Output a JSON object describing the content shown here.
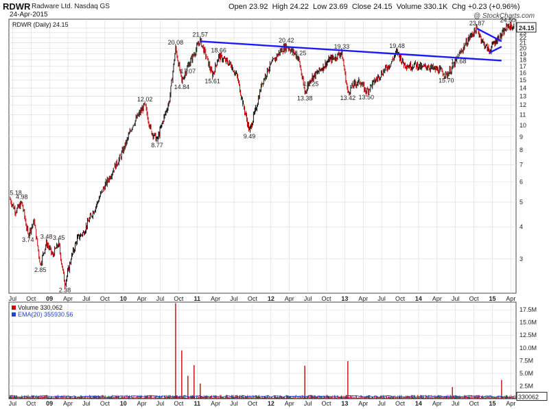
{
  "header": {
    "symbol": "RDWR",
    "company": "Radware Ltd.  Nasdaq GS",
    "date": "24-Apr-2015",
    "open_label": "Open",
    "open": "23.92",
    "high_label": "High",
    "high": "24.22",
    "low_label": "Low",
    "low": "23.69",
    "close_label": "Close",
    "close": "24.15",
    "volume_label": "Volume",
    "volume": "330.1K",
    "chg_label": "Chg",
    "chg": "+0.23 (+0.96%)",
    "watermark": "@ StockCharts.com"
  },
  "price_legend": "RDWR (Daily) 24.15",
  "last_price_tag": "24.15",
  "volume_legend": {
    "volume": "Volume 330,062",
    "ema": "EMA(20) 355930.56"
  },
  "volume_last_tag": "330062",
  "colors": {
    "up": "#111111",
    "down": "#cc0000",
    "trendline": "#1a1aff",
    "grid": "#d8d8d8",
    "volume_fill": "#e8a0a0",
    "ema": "#2244cc"
  },
  "chart_data": [
    {
      "type": "line",
      "scale": "log",
      "ylim": [
        2.2,
        26
      ],
      "yticks": [
        "24",
        "23",
        "22",
        "21",
        "20",
        "19",
        "18",
        "17",
        "16",
        "15",
        "14",
        "13",
        "12",
        "11",
        "10",
        "9",
        "8",
        "7",
        "6",
        "5",
        "4",
        "3"
      ],
      "x_labels": [
        "Jul",
        "Oct",
        "09",
        "Apr",
        "Jul",
        "Oct",
        "10",
        "Apr",
        "Jul",
        "Oct",
        "11",
        "Apr",
        "Jul",
        "Oct",
        "12",
        "Apr",
        "Jul",
        "Oct",
        "13",
        "Apr",
        "Jul",
        "Oct",
        "14",
        "Apr",
        "Jul",
        "Oct",
        "15",
        "Apr"
      ],
      "x_label_year_flags": [
        0,
        0,
        1,
        0,
        0,
        0,
        1,
        0,
        0,
        0,
        1,
        0,
        0,
        0,
        1,
        0,
        0,
        0,
        1,
        0,
        0,
        0,
        1,
        0,
        0,
        0,
        1,
        0
      ],
      "x_range_months": [
        "2008-06",
        "2015-04"
      ],
      "series": [
        {
          "values_by_month": [
            [
              "2008-06",
              5.18
            ],
            [
              "2008-07",
              4.6
            ],
            [
              "2008-08",
              4.98
            ],
            [
              "2008-09",
              3.74
            ],
            [
              "2008-10",
              4.2
            ],
            [
              "2008-11",
              2.85
            ],
            [
              "2008-12",
              3.48
            ],
            [
              "2009-01",
              3.1
            ],
            [
              "2009-02",
              3.45
            ],
            [
              "2009-03",
              2.38
            ],
            [
              "2009-04",
              3.0
            ],
            [
              "2009-05",
              3.6
            ],
            [
              "2009-06",
              3.8
            ],
            [
              "2009-07",
              4.3
            ],
            [
              "2009-08",
              4.8
            ],
            [
              "2009-09",
              5.5
            ],
            [
              "2009-10",
              6.1
            ],
            [
              "2009-11",
              6.8
            ],
            [
              "2009-12",
              7.5
            ],
            [
              "2010-01",
              8.6
            ],
            [
              "2010-02",
              10.0
            ],
            [
              "2010-03",
              11.0
            ],
            [
              "2010-04",
              12.02
            ],
            [
              "2010-05",
              9.5
            ],
            [
              "2010-06",
              8.77
            ],
            [
              "2010-07",
              10.5
            ],
            [
              "2010-08",
              12.5
            ],
            [
              "2010-09",
              20.08
            ],
            [
              "2010-10",
              14.84
            ],
            [
              "2010-11",
              17.07
            ],
            [
              "2010-12",
              19.0
            ],
            [
              "2011-01",
              21.57
            ],
            [
              "2011-02",
              18.5
            ],
            [
              "2011-03",
              15.61
            ],
            [
              "2011-04",
              18.66
            ],
            [
              "2011-05",
              18.0
            ],
            [
              "2011-06",
              17.2
            ],
            [
              "2011-07",
              15.5
            ],
            [
              "2011-08",
              12.0
            ],
            [
              "2011-09",
              9.49
            ],
            [
              "2011-10",
              11.5
            ],
            [
              "2011-11",
              14.5
            ],
            [
              "2011-12",
              16.5
            ],
            [
              "2012-01",
              18.0
            ],
            [
              "2012-02",
              19.5
            ],
            [
              "2012-03",
              20.42
            ],
            [
              "2012-04",
              19.5
            ],
            [
              "2012-05",
              18.25
            ],
            [
              "2012-06",
              13.38
            ],
            [
              "2012-07",
              15.25
            ],
            [
              "2012-08",
              16.0
            ],
            [
              "2012-09",
              17.0
            ],
            [
              "2012-10",
              18.0
            ],
            [
              "2012-11",
              18.5
            ],
            [
              "2012-12",
              19.33
            ],
            [
              "2013-01",
              13.42
            ],
            [
              "2013-02",
              14.5
            ],
            [
              "2013-03",
              14.8
            ],
            [
              "2013-04",
              13.5
            ],
            [
              "2013-05",
              14.5
            ],
            [
              "2013-06",
              15.5
            ],
            [
              "2013-07",
              16.5
            ],
            [
              "2013-08",
              17.5
            ],
            [
              "2013-09",
              19.48
            ],
            [
              "2013-10",
              17.5
            ],
            [
              "2013-11",
              17.0
            ],
            [
              "2013-12",
              17.3
            ],
            [
              "2014-01",
              16.8
            ],
            [
              "2014-02",
              17.0
            ],
            [
              "2014-03",
              16.6
            ],
            [
              "2014-04",
              16.4
            ],
            [
              "2014-05",
              15.7
            ],
            [
              "2014-06",
              16.8
            ],
            [
              "2014-07",
              18.68
            ],
            [
              "2014-08",
              20.5
            ],
            [
              "2014-09",
              22.5
            ],
            [
              "2014-10",
              23.87
            ],
            [
              "2014-11",
              21.0
            ],
            [
              "2014-12",
              19.5
            ],
            [
              "2015-01",
              21.5
            ],
            [
              "2015-02",
              22.5
            ],
            [
              "2015-03",
              24.5
            ],
            [
              "2015-04",
              24.15
            ]
          ]
        }
      ],
      "annotations": [
        {
          "date": "2008-06",
          "value": 5.18,
          "text": "5.18",
          "pos": "above"
        },
        {
          "date": "2008-08",
          "value": 4.98,
          "text": "4.98",
          "pos": "above"
        },
        {
          "date": "2008-09",
          "value": 3.74,
          "text": "3.74",
          "pos": "below"
        },
        {
          "date": "2008-11",
          "value": 2.85,
          "text": "2.85",
          "pos": "below"
        },
        {
          "date": "2008-12",
          "value": 3.48,
          "text": "3.48",
          "pos": "above"
        },
        {
          "date": "2009-02",
          "value": 3.45,
          "text": "3.45",
          "pos": "above"
        },
        {
          "date": "2009-03",
          "value": 2.38,
          "text": "2.38",
          "pos": "below"
        },
        {
          "date": "2010-04",
          "value": 12.02,
          "text": "12.02",
          "pos": "above"
        },
        {
          "date": "2010-06",
          "value": 8.77,
          "text": "8.77",
          "pos": "below"
        },
        {
          "date": "2010-09",
          "value": 20.08,
          "text": "20.08",
          "pos": "above"
        },
        {
          "date": "2010-10",
          "value": 14.84,
          "text": "14.84",
          "pos": "below"
        },
        {
          "date": "2010-11",
          "value": 17.07,
          "text": "17.07",
          "pos": "below"
        },
        {
          "date": "2011-01",
          "value": 21.57,
          "text": "21.57",
          "pos": "above"
        },
        {
          "date": "2011-03",
          "value": 15.61,
          "text": "15.61",
          "pos": "below"
        },
        {
          "date": "2011-04",
          "value": 18.66,
          "text": "18.66",
          "pos": "above"
        },
        {
          "date": "2011-09",
          "value": 9.49,
          "text": "9.49",
          "pos": "below"
        },
        {
          "date": "2012-03",
          "value": 20.42,
          "text": "20.42",
          "pos": "above"
        },
        {
          "date": "2012-05",
          "value": 18.25,
          "text": "18.25",
          "pos": "above"
        },
        {
          "date": "2012-06",
          "value": 13.38,
          "text": "13.38",
          "pos": "below"
        },
        {
          "date": "2012-07",
          "value": 15.25,
          "text": "15.25",
          "pos": "below"
        },
        {
          "date": "2012-12",
          "value": 19.33,
          "text": "19.33",
          "pos": "above"
        },
        {
          "date": "2013-01",
          "value": 13.42,
          "text": "13.42",
          "pos": "below"
        },
        {
          "date": "2013-04",
          "value": 13.5,
          "text": "13.50",
          "pos": "below"
        },
        {
          "date": "2013-09",
          "value": 19.48,
          "text": "19.48",
          "pos": "above"
        },
        {
          "date": "2014-05",
          "value": 15.7,
          "text": "15.70",
          "pos": "below"
        },
        {
          "date": "2014-07",
          "value": 18.68,
          "text": "18.68",
          "pos": "below"
        },
        {
          "date": "2014-10",
          "value": 23.87,
          "text": "23.87",
          "pos": "above"
        },
        {
          "date": "2015-03",
          "value": 24.5,
          "text": "24.50",
          "pos": "above"
        }
      ],
      "trendlines": [
        {
          "from": [
            "2011-01",
            21.3
          ],
          "to": [
            "2015-02",
            17.9
          ]
        },
        {
          "from": [
            "2014-10",
            23.9
          ],
          "to": [
            "2015-02",
            21.3
          ]
        },
        {
          "from": [
            "2014-12",
            19.2
          ],
          "to": [
            "2015-02",
            20.3
          ]
        }
      ]
    },
    {
      "type": "bar",
      "title": "Volume",
      "ylim": [
        0,
        19000000
      ],
      "yticks": [
        "17.5M",
        "15.0M",
        "12.5M",
        "10.0M",
        "7.5M",
        "5.0M",
        "2.5M"
      ],
      "ytick_values": [
        17500000,
        15000000,
        12500000,
        10000000,
        7500000,
        5000000,
        2500000
      ],
      "spikes": [
        {
          "date": "2010-09",
          "value": 18800000
        },
        {
          "date": "2010-10",
          "value": 9500000
        },
        {
          "date": "2010-12",
          "value": 6600000
        },
        {
          "date": "2010-11",
          "value": 4500000
        },
        {
          "date": "2011-01",
          "value": 3000000
        },
        {
          "date": "2012-06",
          "value": 6500000
        },
        {
          "date": "2013-01",
          "value": 7400000
        },
        {
          "date": "2014-06",
          "value": 2300000
        },
        {
          "date": "2015-02",
          "value": 3700000
        }
      ],
      "typical_volume": 400000,
      "ema_typical": 450000
    }
  ]
}
